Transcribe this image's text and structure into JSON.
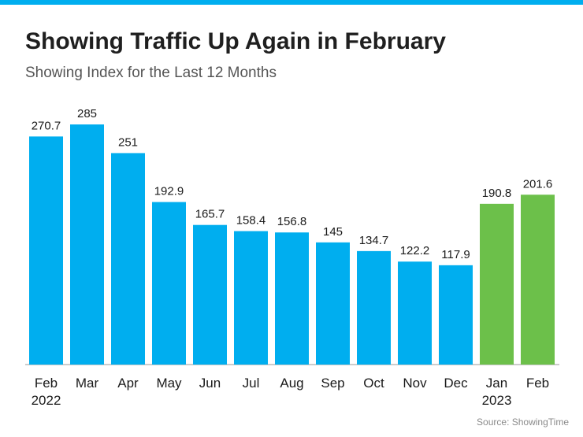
{
  "chart_data": {
    "type": "bar",
    "title": "Showing Traffic Up Again in February",
    "subtitle": "Showing Index for the Last 12 Months",
    "source": "Source: ShowingTime",
    "categories": [
      "Feb 2022",
      "Mar",
      "Apr",
      "May",
      "Jun",
      "Jul",
      "Aug",
      "Sep",
      "Oct",
      "Nov",
      "Dec",
      "Jan 2023",
      "Feb"
    ],
    "values": [
      270.7,
      285,
      251,
      192.9,
      165.7,
      158.4,
      156.8,
      145,
      134.7,
      122.2,
      117.9,
      190.8,
      201.6
    ],
    "colors": [
      "#00aeef",
      "#00aeef",
      "#00aeef",
      "#00aeef",
      "#00aeef",
      "#00aeef",
      "#00aeef",
      "#00aeef",
      "#00aeef",
      "#00aeef",
      "#00aeef",
      "#6cc04a",
      "#6cc04a"
    ],
    "ylim": [
      0,
      300
    ]
  }
}
